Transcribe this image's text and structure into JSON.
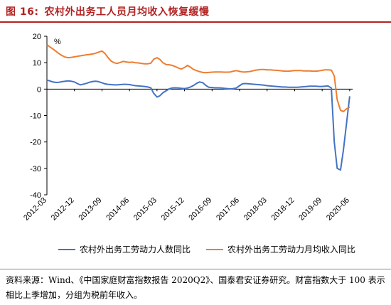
{
  "figure": {
    "label": "图 16:",
    "title": "农村外出务工人员月均收入恢复缓慢",
    "accent_color": "#b22222"
  },
  "source": {
    "text": "资料来源：Wind、《中国家庭财富指数报告 2020Q2》、国泰君安证券研究。财富指数大于 100 表示相比上季增加，分组为税前年收入。"
  },
  "chart_data": {
    "type": "line",
    "unit_label": "%",
    "ylim": [
      -40,
      20
    ],
    "yticks": [
      20,
      10,
      0,
      -10,
      -20,
      -30,
      -40
    ],
    "xlim": [
      2012.17,
      2020.5
    ],
    "xtick_labels": [
      "2012-03",
      "2012-12",
      "2013-09",
      "2014-06",
      "2015-03",
      "2015-12",
      "2016-09",
      "2017-06",
      "2018-03",
      "2018-12",
      "2019-09",
      "2020-06"
    ],
    "xtick_values": [
      2012.17,
      2012.92,
      2013.67,
      2014.42,
      2015.17,
      2015.92,
      2016.67,
      2017.42,
      2018.17,
      2018.92,
      2019.67,
      2020.42
    ],
    "grid": false,
    "legend_position": "bottom",
    "series": [
      {
        "name": "农村外出务工劳动力人数同比",
        "color": "#4472c4",
        "x": [
          2012.17,
          2012.25,
          2012.33,
          2012.42,
          2012.5,
          2012.58,
          2012.67,
          2012.75,
          2012.83,
          2012.92,
          2013.0,
          2013.08,
          2013.17,
          2013.25,
          2013.33,
          2013.42,
          2013.5,
          2013.58,
          2013.67,
          2013.75,
          2013.83,
          2013.92,
          2014.0,
          2014.08,
          2014.17,
          2014.25,
          2014.33,
          2014.42,
          2014.5,
          2014.58,
          2014.67,
          2014.75,
          2014.83,
          2014.92,
          2015.0,
          2015.08,
          2015.17,
          2015.25,
          2015.33,
          2015.42,
          2015.5,
          2015.58,
          2015.67,
          2015.75,
          2015.83,
          2015.92,
          2016.0,
          2016.08,
          2016.17,
          2016.25,
          2016.33,
          2016.42,
          2016.5,
          2016.58,
          2016.67,
          2016.75,
          2016.83,
          2016.92,
          2017.0,
          2017.08,
          2017.17,
          2017.25,
          2017.33,
          2017.42,
          2017.5,
          2017.58,
          2017.67,
          2017.75,
          2017.83,
          2017.92,
          2018.0,
          2018.08,
          2018.17,
          2018.25,
          2018.33,
          2018.42,
          2018.5,
          2018.58,
          2018.67,
          2018.75,
          2018.83,
          2018.92,
          2019.0,
          2019.08,
          2019.17,
          2019.25,
          2019.33,
          2019.42,
          2019.5,
          2019.58,
          2019.67,
          2019.75,
          2019.83,
          2019.92,
          2020.0,
          2020.08,
          2020.17,
          2020.25,
          2020.33,
          2020.42
        ],
        "y": [
          3.4,
          3.1,
          2.7,
          2.5,
          2.6,
          2.8,
          3.0,
          3.1,
          3.0,
          2.7,
          2.1,
          1.6,
          1.9,
          2.2,
          2.6,
          2.9,
          3.0,
          2.8,
          2.4,
          2.0,
          1.8,
          1.7,
          1.6,
          1.6,
          1.7,
          1.8,
          1.8,
          1.7,
          1.5,
          1.3,
          1.2,
          1.1,
          1.0,
          0.8,
          0.5,
          -1.6,
          -3.0,
          -2.5,
          -1.4,
          -0.6,
          0.1,
          0.4,
          0.5,
          0.4,
          0.3,
          0.2,
          0.4,
          0.8,
          1.4,
          2.2,
          2.7,
          2.4,
          1.4,
          0.7,
          0.6,
          0.5,
          0.5,
          0.4,
          0.3,
          0.2,
          0.1,
          0.2,
          0.4,
          1.3,
          2.0,
          2.1,
          2.0,
          1.9,
          1.8,
          1.7,
          1.6,
          1.5,
          1.3,
          1.2,
          1.1,
          1.0,
          0.9,
          0.8,
          0.8,
          0.7,
          0.7,
          0.7,
          0.7,
          0.8,
          0.9,
          1.0,
          1.1,
          1.1,
          1.1,
          1.0,
          1.0,
          1.1,
          1.2,
          0.4,
          -20.0,
          -30.0,
          -30.6,
          -23.0,
          -13.5,
          -2.7
        ]
      },
      {
        "name": "农村外出务工劳动力月均收入同比",
        "color": "#ed7d31",
        "x": [
          2012.17,
          2012.25,
          2012.33,
          2012.42,
          2012.5,
          2012.58,
          2012.67,
          2012.75,
          2012.83,
          2012.92,
          2013.0,
          2013.08,
          2013.17,
          2013.25,
          2013.33,
          2013.42,
          2013.5,
          2013.58,
          2013.67,
          2013.75,
          2013.83,
          2013.92,
          2014.0,
          2014.08,
          2014.17,
          2014.25,
          2014.33,
          2014.42,
          2014.5,
          2014.58,
          2014.67,
          2014.75,
          2014.83,
          2014.92,
          2015.0,
          2015.08,
          2015.17,
          2015.25,
          2015.33,
          2015.42,
          2015.5,
          2015.58,
          2015.67,
          2015.75,
          2015.83,
          2015.92,
          2016.0,
          2016.08,
          2016.17,
          2016.25,
          2016.33,
          2016.42,
          2016.5,
          2016.58,
          2016.67,
          2016.75,
          2016.83,
          2016.92,
          2017.0,
          2017.08,
          2017.17,
          2017.25,
          2017.33,
          2017.42,
          2017.5,
          2017.58,
          2017.67,
          2017.75,
          2017.83,
          2017.92,
          2018.0,
          2018.08,
          2018.17,
          2018.25,
          2018.33,
          2018.42,
          2018.5,
          2018.58,
          2018.67,
          2018.75,
          2018.83,
          2018.92,
          2019.0,
          2019.08,
          2019.17,
          2019.25,
          2019.33,
          2019.42,
          2019.5,
          2019.58,
          2019.67,
          2019.75,
          2019.83,
          2019.92,
          2020.0,
          2020.08,
          2020.17,
          2020.25,
          2020.33,
          2020.42
        ],
        "y": [
          16.8,
          16.0,
          15.2,
          14.3,
          13.4,
          12.7,
          12.1,
          11.9,
          12.0,
          12.2,
          12.4,
          12.6,
          12.8,
          13.0,
          13.1,
          13.3,
          13.6,
          14.0,
          14.4,
          13.5,
          12.0,
          10.6,
          10.0,
          9.7,
          10.1,
          10.5,
          10.3,
          10.1,
          10.2,
          10.0,
          9.9,
          9.7,
          9.6,
          9.6,
          9.8,
          11.3,
          11.9,
          11.2,
          10.0,
          9.3,
          9.2,
          9.0,
          8.5,
          8.0,
          7.6,
          8.2,
          9.0,
          8.3,
          7.4,
          7.0,
          6.6,
          6.3,
          6.2,
          6.3,
          6.4,
          6.5,
          6.5,
          6.5,
          6.4,
          6.4,
          6.5,
          6.8,
          7.0,
          6.7,
          6.5,
          6.5,
          6.6,
          6.8,
          7.1,
          7.3,
          7.4,
          7.4,
          7.3,
          7.3,
          7.2,
          7.1,
          7.0,
          6.9,
          6.8,
          6.8,
          6.9,
          7.0,
          7.0,
          7.0,
          6.9,
          6.9,
          6.9,
          6.8,
          6.8,
          6.9,
          7.1,
          7.3,
          7.3,
          7.2,
          5.0,
          -4.0,
          -8.0,
          -8.5,
          -7.5,
          -6.8
        ]
      }
    ]
  }
}
